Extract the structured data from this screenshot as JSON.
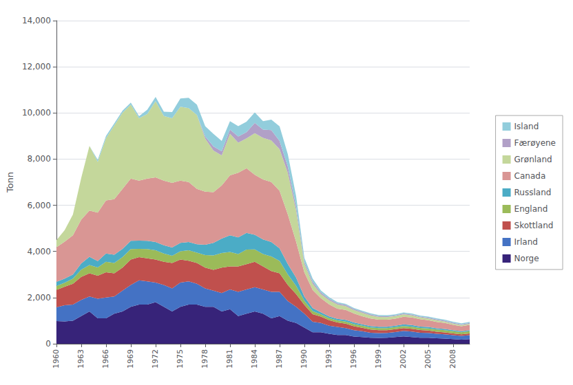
{
  "chart_data": {
    "type": "area",
    "stacked": true,
    "ylabel": "Tonn",
    "x": [
      1960,
      1961,
      1962,
      1963,
      1964,
      1965,
      1966,
      1967,
      1968,
      1969,
      1970,
      1971,
      1972,
      1973,
      1974,
      1975,
      1976,
      1977,
      1978,
      1979,
      1980,
      1981,
      1982,
      1983,
      1984,
      1985,
      1986,
      1987,
      1988,
      1989,
      1990,
      1991,
      1992,
      1993,
      1994,
      1995,
      1996,
      1997,
      1998,
      1999,
      2000,
      2001,
      2002,
      2003,
      2004,
      2005,
      2006,
      2007,
      2008,
      2009,
      2010
    ],
    "xlim": [
      1960,
      2010
    ],
    "xticks": [
      1960,
      1963,
      1966,
      1969,
      1972,
      1975,
      1978,
      1981,
      1984,
      1987,
      1990,
      1993,
      1996,
      1999,
      2002,
      2005,
      2008
    ],
    "ylim": [
      0,
      14000
    ],
    "yticks": [
      0,
      2000,
      4000,
      6000,
      8000,
      10000,
      12000,
      14000
    ],
    "grid": true,
    "legend": "right",
    "series": [
      {
        "name": "Norge",
        "color": "#372379",
        "values": [
          980,
          970,
          1000,
          1200,
          1400,
          1100,
          1100,
          1300,
          1400,
          1600,
          1700,
          1700,
          1800,
          1600,
          1400,
          1600,
          1700,
          1700,
          1600,
          1600,
          1400,
          1500,
          1200,
          1300,
          1400,
          1300,
          1100,
          1200,
          1000,
          900,
          700,
          500,
          500,
          430,
          380,
          380,
          310,
          290,
          260,
          250,
          260,
          290,
          320,
          290,
          260,
          260,
          240,
          220,
          200,
          180,
          200
        ]
      },
      {
        "name": "Irland",
        "color": "#4472C4",
        "values": [
          600,
          700,
          700,
          700,
          650,
          850,
          900,
          750,
          900,
          950,
          1050,
          1000,
          850,
          950,
          1000,
          1050,
          1000,
          900,
          800,
          700,
          800,
          850,
          1050,
          1050,
          1050,
          1050,
          1150,
          1050,
          850,
          700,
          600,
          450,
          400,
          350,
          350,
          300,
          280,
          250,
          220,
          210,
          210,
          220,
          240,
          240,
          220,
          210,
          190,
          190,
          175,
          165,
          175
        ]
      },
      {
        "name": "Skottland",
        "color": "#C0504D",
        "values": [
          750,
          800,
          900,
          1000,
          1000,
          1000,
          1100,
          1000,
          1000,
          1100,
          1000,
          1000,
          1000,
          1000,
          1100,
          1000,
          900,
          900,
          900,
          900,
          1100,
          1000,
          1100,
          1100,
          1100,
          1000,
          900,
          800,
          700,
          550,
          380,
          330,
          280,
          240,
          190,
          190,
          170,
          150,
          140,
          130,
          120,
          120,
          120,
          120,
          115,
          105,
          95,
          85,
          75,
          65,
          75
        ]
      },
      {
        "name": "England",
        "color": "#9BBB59",
        "values": [
          170,
          170,
          220,
          310,
          360,
          360,
          450,
          450,
          450,
          450,
          360,
          400,
          400,
          360,
          310,
          360,
          450,
          450,
          540,
          630,
          630,
          630,
          540,
          630,
          540,
          540,
          630,
          540,
          450,
          360,
          180,
          135,
          90,
          90,
          90,
          90,
          90,
          90,
          90,
          90,
          90,
          90,
          90,
          90,
          90,
          90,
          90,
          90,
          90,
          90,
          90
        ]
      },
      {
        "name": "Russland",
        "color": "#4BACC6",
        "values": [
          180,
          180,
          180,
          270,
          360,
          270,
          360,
          360,
          360,
          360,
          360,
          360,
          360,
          360,
          360,
          360,
          360,
          360,
          450,
          540,
          630,
          720,
          720,
          720,
          630,
          630,
          630,
          540,
          450,
          360,
          180,
          135,
          90,
          72,
          72,
          72,
          72,
          63,
          54,
          54,
          54,
          63,
          72,
          72,
          63,
          63,
          54,
          54,
          45,
          45,
          45
        ]
      },
      {
        "name": "Canada",
        "color": "#D99694",
        "values": [
          1500,
          1600,
          1700,
          1900,
          2000,
          2100,
          2300,
          2400,
          2600,
          2700,
          2600,
          2700,
          2800,
          2800,
          2800,
          2700,
          2600,
          2400,
          2300,
          2200,
          2300,
          2600,
          2800,
          2800,
          2600,
          2600,
          2600,
          2500,
          2150,
          1550,
          1050,
          780,
          610,
          520,
          435,
          435,
          390,
          350,
          330,
          305,
          305,
          305,
          330,
          330,
          315,
          295,
          280,
          260,
          235,
          218,
          235
        ]
      },
      {
        "name": "Grønland",
        "color": "#C4D79B",
        "values": [
          300,
          500,
          900,
          1800,
          2800,
          2200,
          2700,
          3200,
          3300,
          3200,
          2700,
          2800,
          3300,
          2800,
          2800,
          3200,
          3200,
          3200,
          2300,
          1800,
          1300,
          1800,
          1300,
          1300,
          1800,
          1800,
          1800,
          1800,
          1800,
          1350,
          360,
          270,
          180,
          180,
          180,
          162,
          144,
          144,
          135,
          126,
          117,
          108,
          99,
          90,
          81,
          72,
          72,
          63,
          54,
          45,
          45
        ]
      },
      {
        "name": "Færøyene",
        "color": "#B1A0C7",
        "values": [
          0,
          0,
          0,
          0,
          0,
          0,
          0,
          0,
          0,
          0,
          0,
          0,
          0,
          0,
          0,
          0,
          0,
          0,
          90,
          180,
          180,
          180,
          270,
          270,
          450,
          360,
          450,
          360,
          270,
          180,
          90,
          90,
          72,
          63,
          54,
          54,
          45,
          45,
          45,
          36,
          36,
          36,
          36,
          36,
          36,
          36,
          36,
          36,
          36,
          36,
          36
        ]
      },
      {
        "name": "Island",
        "color": "#92CDDC",
        "values": [
          0,
          0,
          0,
          0,
          0,
          90,
          90,
          90,
          90,
          90,
          90,
          180,
          180,
          180,
          270,
          360,
          450,
          450,
          450,
          540,
          450,
          360,
          450,
          450,
          450,
          360,
          450,
          630,
          540,
          450,
          180,
          135,
          90,
          72,
          54,
          45,
          45,
          45,
          45,
          45,
          45,
          45,
          45,
          45,
          45,
          45,
          45,
          45,
          45,
          45,
          45
        ]
      }
    ]
  }
}
